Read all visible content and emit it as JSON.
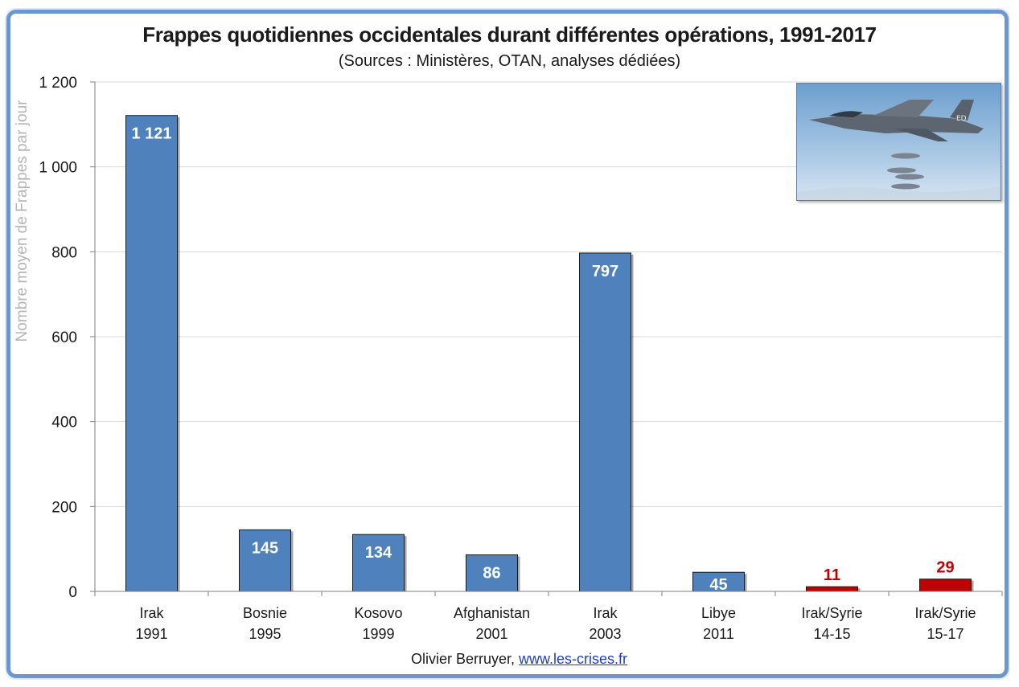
{
  "title": "Frappes quotidiennes occidentales durant différentes opérations, 1991-2017",
  "subtitle": "(Sources : Ministères, OTAN, analyses dédiées)",
  "credit": {
    "author": "Olivier Berruyer,",
    "link": "www.les-crises.fr"
  },
  "photo": {
    "tail_code": "ED",
    "icon": "fighter-jet-dropping-bombs"
  },
  "colors": {
    "bar_blue": "#4f81bd",
    "bar_red": "#c00000",
    "label_red": "#c00000",
    "frame": "#6b96cf"
  },
  "chart_data": {
    "type": "bar",
    "title": "Frappes quotidiennes occidentales durant différentes opérations, 1991-2017",
    "subtitle": "(Sources : Ministères, OTAN, analyses dédiées)",
    "ylabel": "Nombre moyen de Frappes par jour",
    "xlabel": "",
    "ylim": [
      0,
      1200
    ],
    "yticks": [
      0,
      200,
      400,
      600,
      800,
      1000,
      1200
    ],
    "ytick_labels": [
      "0",
      "200",
      "400",
      "600",
      "800",
      "1 000",
      "1 200"
    ],
    "grid": true,
    "categories": [
      [
        "Irak",
        "1991"
      ],
      [
        "Bosnie",
        "1995"
      ],
      [
        "Kosovo",
        "1999"
      ],
      [
        "Afghanistan",
        "2001"
      ],
      [
        "Irak",
        "2003"
      ],
      [
        "Libye",
        "2011"
      ],
      [
        "Irak/Syrie",
        "14-15"
      ],
      [
        "Irak/Syrie",
        "15-17"
      ]
    ],
    "values": [
      1121,
      145,
      134,
      86,
      797,
      45,
      11,
      29
    ],
    "value_labels": [
      "1 121",
      "145",
      "134",
      "86",
      "797",
      "45",
      "11",
      "29"
    ],
    "bar_colors": [
      "blue",
      "blue",
      "blue",
      "blue",
      "blue",
      "blue",
      "red",
      "red"
    ]
  }
}
